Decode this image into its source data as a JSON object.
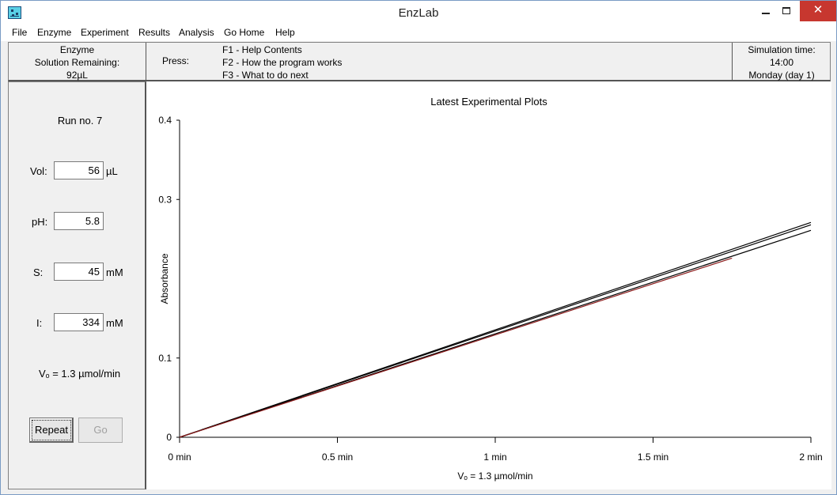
{
  "window": {
    "title": "EnzLab",
    "close_glyph": "✕",
    "icon": "enzlab-app-icon"
  },
  "menu": [
    "File",
    "Enzyme",
    "Experiment",
    "Results",
    "Analysis",
    "Go Home",
    "Help"
  ],
  "info": {
    "enzyme_line1": "Enzyme",
    "enzyme_line2": "Solution Remaining:",
    "enzyme_amount": "92µL",
    "press_label": "Press:",
    "f1": "F1 - Help Contents",
    "f2": "F2 - How the program works",
    "f3": "F3 - What to do next",
    "sim_label": "Simulation time:",
    "sim_time": "14:00",
    "sim_day": "Monday (day 1)"
  },
  "panel": {
    "run": "Run no. 7",
    "vol_label": "Vol:",
    "vol_value": "56",
    "vol_unit": "µL",
    "ph_label": "pH:",
    "ph_value": "5.8",
    "s_label": "S:",
    "s_value": "45",
    "s_unit": "mM",
    "i_label": "I:",
    "i_value": "334",
    "i_unit": "mM",
    "vo_text": "Vₒ = 1.3 µmol/min",
    "repeat_label": "Repeat",
    "go_label": "Go"
  },
  "chart_data": {
    "type": "line",
    "title": "Latest Experimental Plots",
    "ylabel": "Absorbance",
    "xlabel": "Vₒ = 1.3 µmol/min",
    "xlim": [
      0,
      2
    ],
    "ylim": [
      0,
      0.4
    ],
    "x_ticks": [
      0,
      0.5,
      1,
      1.5,
      2
    ],
    "x_tick_labels": [
      "0 min",
      "0.5 min",
      "1 min",
      "1.5 min",
      "2 min"
    ],
    "y_ticks": [
      0,
      0.1,
      0.3,
      0.4
    ],
    "y_tick_labels": [
      "0",
      "0.1",
      "0.3",
      "0.4"
    ],
    "grid": false,
    "series": [
      {
        "color": "#000000",
        "x": [
          0,
          2
        ],
        "y": [
          0,
          0.271
        ]
      },
      {
        "color": "#000000",
        "x": [
          0,
          2
        ],
        "y": [
          0,
          0.268
        ]
      },
      {
        "color": "#000000",
        "x": [
          0,
          2
        ],
        "y": [
          0,
          0.261
        ]
      },
      {
        "color": "#8b1a1a",
        "x": [
          0,
          1.75
        ],
        "y": [
          0,
          0.226
        ]
      }
    ]
  }
}
